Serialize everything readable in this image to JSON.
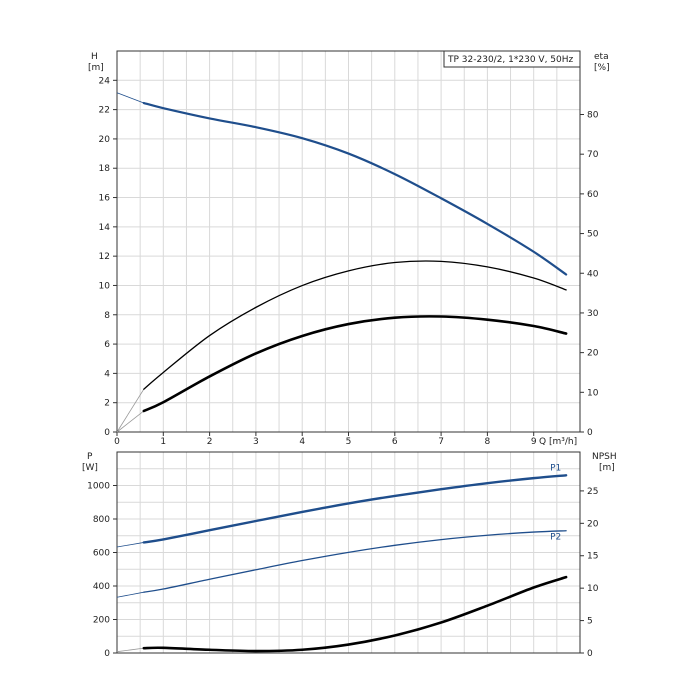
{
  "chart_data": [
    {
      "type": "line",
      "title": "TP 32-230/2, 1*230 V, 50Hz",
      "xlabel": "Q [m³/h]",
      "x_unit_text": "Q [m³/h]",
      "ylabel_left": "H",
      "ylabel_left_unit": "[m]",
      "ylabel_right": "eta",
      "ylabel_right_unit": "[%]",
      "xlim": [
        0,
        10
      ],
      "ylim_left": [
        0,
        26
      ],
      "ylim_right": [
        0,
        96
      ],
      "x_ticks": [
        "0",
        "1",
        "2",
        "3",
        "4",
        "5",
        "6",
        "7",
        "8",
        "9"
      ],
      "y_left_ticks": [
        "0",
        "2",
        "4",
        "6",
        "8",
        "10",
        "12",
        "14",
        "16",
        "18",
        "20",
        "22",
        "24"
      ],
      "y_right_ticks": [
        "0",
        "10",
        "20",
        "30",
        "40",
        "50",
        "60",
        "70",
        "80"
      ],
      "grid": true,
      "series": [
        {
          "name": "H",
          "axis": "left",
          "color": "#1f4e8c",
          "x": [
            0.58,
            1,
            2,
            3,
            4,
            5,
            6,
            7,
            8,
            9,
            9.7
          ],
          "y": [
            22.45,
            22.1,
            21.4,
            20.8,
            20.05,
            19.0,
            17.6,
            15.95,
            14.2,
            12.3,
            10.75
          ]
        },
        {
          "name": "",
          "axis": "right",
          "color": "#000000",
          "weight": "thin",
          "x": [
            0.58,
            1,
            2,
            3,
            4,
            5,
            6,
            7,
            8,
            9,
            9.7
          ],
          "y": [
            10.8,
            15.0,
            24.3,
            31.4,
            36.9,
            40.6,
            42.7,
            43.0,
            41.6,
            38.8,
            35.8
          ]
        },
        {
          "name": "",
          "axis": "right",
          "color": "#000000",
          "weight": "thick",
          "x": [
            0.58,
            1,
            2,
            3,
            4,
            5,
            6,
            7,
            8,
            9,
            9.7
          ],
          "y": [
            5.3,
            7.5,
            14.0,
            19.8,
            24.2,
            27.2,
            28.8,
            29.1,
            28.3,
            26.7,
            24.8
          ]
        }
      ],
      "extrapolations": [
        {
          "axis": "left",
          "color": "#1f4e8c",
          "x": [
            0,
            0.58
          ],
          "y": [
            23.15,
            22.45
          ]
        },
        {
          "axis": "right",
          "color": "#999999",
          "x": [
            0,
            0.58
          ],
          "y": [
            0,
            10.8
          ]
        },
        {
          "axis": "right",
          "color": "#999999",
          "x": [
            0,
            0.58
          ],
          "y": [
            0,
            5.3
          ]
        }
      ]
    },
    {
      "type": "line",
      "xlabel": "",
      "ylabel_left": "P",
      "ylabel_left_unit": "[W]",
      "ylabel_right": "NPSH",
      "ylabel_right_unit": "[m]",
      "xlim": [
        0,
        10
      ],
      "ylim_left": [
        0,
        1200
      ],
      "ylim_right": [
        0,
        31
      ],
      "y_left_ticks": [
        "0",
        "200",
        "400",
        "600",
        "800",
        "1000"
      ],
      "y_right_ticks": [
        "0",
        "5",
        "10",
        "15",
        "20",
        "25"
      ],
      "grid": true,
      "series": [
        {
          "name": "P1",
          "axis": "left",
          "color": "#1f4e8c",
          "weight": "thick",
          "x": [
            0.58,
            1,
            2,
            3,
            4,
            5,
            6,
            7,
            8,
            9,
            9.7
          ],
          "y": [
            660,
            678,
            733,
            788,
            842,
            893,
            938,
            978,
            1014,
            1044,
            1061
          ]
        },
        {
          "name": "P2",
          "axis": "left",
          "color": "#1f4e8c",
          "weight": "thin",
          "x": [
            0.58,
            1,
            2,
            3,
            4,
            5,
            6,
            7,
            8,
            9,
            9.7
          ],
          "y": [
            363,
            382,
            440,
            497,
            552,
            601,
            643,
            677,
            703,
            722,
            730
          ]
        },
        {
          "name": "",
          "axis": "right",
          "color": "#000000",
          "weight": "thick",
          "x": [
            0.58,
            1,
            2,
            3,
            4,
            5,
            6,
            7,
            8,
            9,
            9.7
          ],
          "y": [
            0.75,
            0.8,
            0.5,
            0.3,
            0.5,
            1.3,
            2.7,
            4.7,
            7.3,
            10.1,
            11.7
          ]
        }
      ],
      "extrapolations": [
        {
          "axis": "left",
          "color": "#1f4e8c",
          "x": [
            0,
            0.58
          ],
          "y": [
            633,
            660
          ]
        },
        {
          "axis": "left",
          "color": "#1f4e8c",
          "x": [
            0,
            0.58
          ],
          "y": [
            333,
            363
          ]
        },
        {
          "axis": "right",
          "color": "#999999",
          "x": [
            0,
            0.58
          ],
          "y": [
            0.2,
            0.75
          ]
        }
      ]
    }
  ]
}
